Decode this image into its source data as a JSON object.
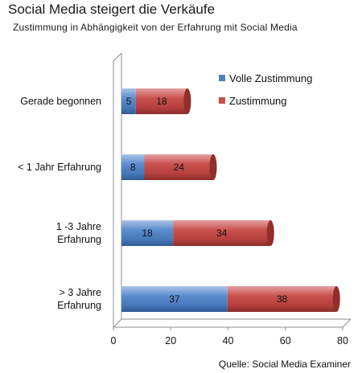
{
  "chart_data": {
    "type": "bar",
    "orientation": "horizontal",
    "stacked": true,
    "title": "Social Media steigert die Verkäufe",
    "subtitle": "Zustimmung  in Abhängigkeit  von der Erfahrung mit Social Media",
    "categories": [
      "Gerade begonnen",
      "< 1 Jahr Erfahrung",
      "1 -3 Jahre Erfahrung",
      "> 3 Jahre Erfahrung"
    ],
    "series": [
      {
        "name": "Volle Zustimmung",
        "values": [
          5,
          8,
          18,
          37
        ],
        "color": "#4f81bd"
      },
      {
        "name": "Zustimmung",
        "values": [
          18,
          24,
          34,
          38
        ],
        "color": "#c0504d"
      }
    ],
    "xlim": [
      0,
      80
    ],
    "xticks": [
      0,
      20,
      40,
      60,
      80
    ],
    "legend": "top-right",
    "grid": false,
    "source": "Quelle: Social Media Examiner"
  }
}
